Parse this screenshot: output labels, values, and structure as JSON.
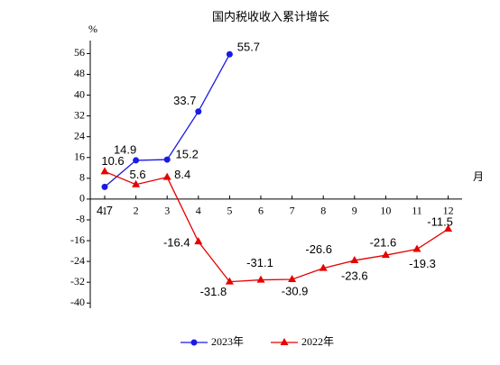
{
  "chart_data": {
    "type": "line",
    "title": "国内税收收入累计增长",
    "y_label": "%",
    "x_label": "月",
    "categories": [
      "1",
      "2",
      "3",
      "4",
      "5",
      "6",
      "7",
      "8",
      "9",
      "10",
      "11",
      "12"
    ],
    "series": [
      {
        "name": "2023年",
        "color": "#1a1ae6",
        "marker": "circle",
        "values": [
          4.7,
          14.9,
          15.2,
          33.7,
          55.7,
          null,
          null,
          null,
          null,
          null,
          null,
          null
        ]
      },
      {
        "name": "2022年",
        "color": "#e60000",
        "marker": "triangle",
        "values": [
          10.6,
          5.6,
          8.4,
          -16.4,
          -31.8,
          -31.1,
          -30.9,
          -26.6,
          -23.6,
          -21.6,
          -19.3,
          -11.5
        ]
      }
    ],
    "ylim": [
      -42,
      61
    ],
    "yticks": [
      56,
      48,
      40,
      32,
      24,
      16,
      8,
      0,
      -8,
      -16,
      -24,
      -32,
      -40
    ],
    "legend": "bottom"
  }
}
